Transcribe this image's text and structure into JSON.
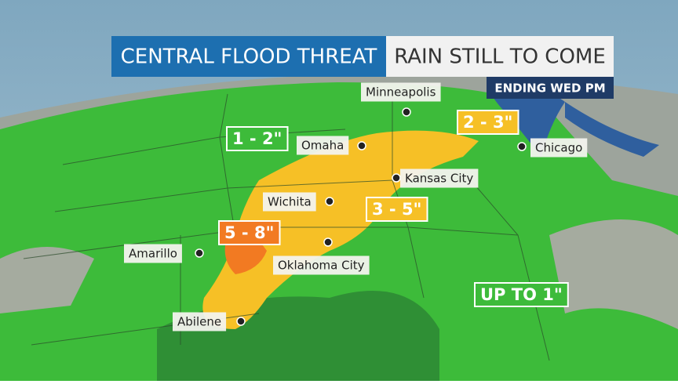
{
  "header": {
    "title": "CENTRAL FLOOD THREAT",
    "subtitle": "RAIN STILL TO COME",
    "badge": "ENDING WED PM"
  },
  "cities": [
    "Minneapolis",
    "Omaha",
    "Chicago",
    "Kansas City",
    "Wichita",
    "Amarillo",
    "Oklahoma City",
    "Abilene"
  ],
  "rain_labels": [
    "1 - 2\"",
    "2 - 3\"",
    "3 - 5\"",
    "5 - 8\"",
    "UP TO 1\""
  ]
}
